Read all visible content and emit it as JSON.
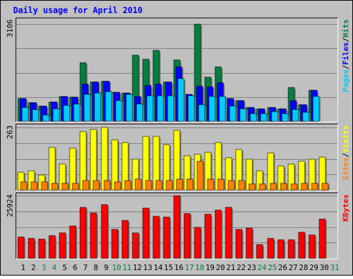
{
  "chart_data": {
    "type": "bar",
    "title": "Daily usage for April 2010",
    "days": [
      "1",
      "2",
      "3",
      "4",
      "5",
      "6",
      "7",
      "8",
      "9",
      "10",
      "11",
      "12",
      "13",
      "14",
      "15",
      "16",
      "17",
      "18",
      "19",
      "20",
      "21",
      "22",
      "23",
      "24",
      "25",
      "26",
      "27",
      "28",
      "29",
      "30",
      "31"
    ],
    "weekend_days": [
      "3",
      "4",
      "10",
      "11",
      "17",
      "18",
      "24",
      "25",
      "31"
    ],
    "panels": [
      {
        "id": "hits-panel",
        "max_label": "3106",
        "ymax": 3106,
        "legend": [
          "Pages",
          "/",
          "Files",
          "/",
          "Hits"
        ],
        "legend_colors": [
          "#00ccff",
          "#000000",
          "#0000ff",
          "#000000",
          "#008040"
        ],
        "series": [
          {
            "name": "Hits",
            "color": "#008040",
            "values": [
              720,
              600,
              480,
              620,
              800,
              760,
              1880,
              1250,
              1280,
              920,
              900,
              2110,
              1980,
              2270,
              1260,
              1970,
              870,
              3106,
              1400,
              1750,
              720,
              660,
              450,
              400,
              450,
              400,
              1080,
              520,
              1000,
              null,
              null
            ]
          },
          {
            "name": "Files",
            "color": "#0000ff",
            "values": [
              720,
              600,
              480,
              620,
              800,
              760,
              1200,
              1250,
              1280,
              920,
              900,
              800,
              1150,
              1200,
              1260,
              1740,
              870,
              1120,
              1100,
              1230,
              720,
              660,
              450,
              400,
              450,
              400,
              660,
              520,
              1000,
              null,
              null
            ]
          },
          {
            "name": "Pages",
            "color": "#00ccff",
            "values": [
              450,
              380,
              200,
              400,
              500,
              560,
              850,
              900,
              950,
              650,
              850,
              540,
              820,
              820,
              820,
              1360,
              820,
              520,
              800,
              800,
              480,
              400,
              250,
              250,
              300,
              250,
              380,
              280,
              800,
              null,
              null
            ]
          }
        ]
      },
      {
        "id": "visits-panel",
        "max_label": "263",
        "ymax": 263,
        "legend": [
          "Sites",
          "/",
          "Visits"
        ],
        "legend_colors": [
          "#ff8000",
          "#000000",
          "#ffff00"
        ],
        "series": [
          {
            "name": "Visits",
            "color": "#ffff00",
            "values": [
              75,
              80,
              65,
              180,
              110,
              175,
              245,
              255,
              262,
              212,
              200,
              130,
              225,
              225,
              190,
              250,
              145,
              150,
              160,
              200,
              135,
              170,
              130,
              80,
              155,
              100,
              110,
              120,
              130,
              140,
              null
            ]
          },
          {
            "name": "Sites",
            "color": "#ff8000",
            "values": [
              35,
              35,
              35,
              30,
              30,
              30,
              40,
              40,
              40,
              35,
              40,
              45,
              40,
              40,
              40,
              45,
              45,
              120,
              45,
              45,
              40,
              40,
              25,
              25,
              30,
              30,
              25,
              30,
              30,
              30,
              null
            ]
          }
        ]
      },
      {
        "id": "kbytes-panel",
        "max_label": "25924",
        "ymax": 25924,
        "legend": [
          "KBytes"
        ],
        "legend_colors": [
          "#ff0000"
        ],
        "series": [
          {
            "name": "KBytes",
            "color": "#ff0000",
            "values": [
              8900,
              8200,
              7900,
              9400,
              10600,
              13400,
              21000,
              18800,
              22100,
              11900,
              15600,
              10500,
              20900,
              17400,
              17100,
              25924,
              18600,
              12900,
              18200,
              19900,
              21100,
              11900,
              12500,
              5600,
              8300,
              7800,
              7800,
              10700,
              9600,
              16100,
              null
            ]
          }
        ]
      }
    ],
    "grid": true,
    "colors": {
      "background": "#c0c0c0",
      "title_text": "#0000ff",
      "day_label": "#000000",
      "weekend_label": "#008040",
      "grid_line": "#808080"
    }
  }
}
